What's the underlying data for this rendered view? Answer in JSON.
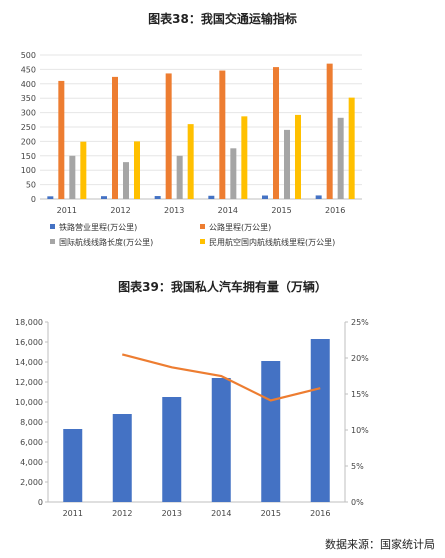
{
  "chart_data": [
    {
      "type": "bar",
      "title": "图表38：我国交通运输指标",
      "categories": [
        "2011",
        "2012",
        "2013",
        "2014",
        "2015",
        "2016"
      ],
      "ylim": [
        0,
        500
      ],
      "yticks": [
        0,
        50,
        100,
        150,
        200,
        250,
        300,
        350,
        400,
        450,
        500
      ],
      "grid": true,
      "legend_position": "bottom",
      "series": [
        {
          "name": "铁路营业里程(万公里)",
          "color": "#4472C4",
          "values": [
            9.3,
            9.8,
            10.3,
            11.2,
            12.1,
            12.4
          ]
        },
        {
          "name": "公路里程(万公里)",
          "color": "#ED7D31",
          "values": [
            410,
            424,
            436,
            446,
            458,
            470
          ]
        },
        {
          "name": "国际航线线路长度(万公里)",
          "color": "#A5A5A5",
          "values": [
            150,
            128,
            150,
            176,
            240,
            282
          ]
        },
        {
          "name": "民用航空国内航线航线里程(万公里)",
          "color": "#FFC000",
          "values": [
            199,
            200,
            260,
            287,
            292,
            352
          ]
        }
      ]
    },
    {
      "type": "bar",
      "title": "图表39：我国私人汽车拥有量（万辆）",
      "categories": [
        "2011",
        "2012",
        "2013",
        "2014",
        "2015",
        "2016"
      ],
      "ylim": [
        0,
        18000
      ],
      "yticks": [
        "0",
        "2,000",
        "4,000",
        "6,000",
        "8,000",
        "10,000",
        "12,000",
        "14,000",
        "16,000",
        "18,000"
      ],
      "y2lim": [
        0,
        25
      ],
      "y2ticks": [
        "0%",
        "5%",
        "10%",
        "15%",
        "20%",
        "25%"
      ],
      "grid": false,
      "series": [
        {
          "type": "bar",
          "color": "#4472C4",
          "values": [
            7300,
            8800,
            10500,
            12400,
            14100,
            16300
          ]
        },
        {
          "type": "line",
          "axis": "right",
          "color": "#ED7D31",
          "values": [
            null,
            20.5,
            18.7,
            17.5,
            14.1,
            15.8
          ]
        }
      ]
    }
  ],
  "source": "数据来源：国家统计局"
}
